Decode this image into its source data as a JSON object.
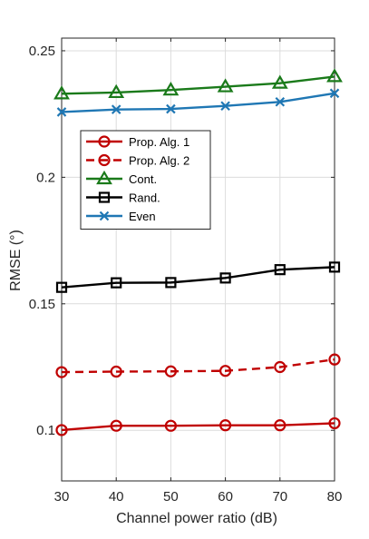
{
  "chart_data": {
    "type": "line",
    "xlabel": "Channel power ratio (dB)",
    "ylabel": "RMSE (°)",
    "xlim": [
      30,
      80
    ],
    "ylim": [
      0.08,
      0.255
    ],
    "xticks": [
      30,
      40,
      50,
      60,
      70,
      80
    ],
    "yticks": [
      0.1,
      0.15,
      0.2,
      0.25
    ],
    "ytick_labels": [
      "0.1",
      "0.15",
      "0.2",
      "0.25"
    ],
    "grid": true,
    "legend_position": "upper-left",
    "x": [
      30,
      40,
      50,
      60,
      70,
      80
    ],
    "series": [
      {
        "name": "Prop. Alg. 1",
        "values": [
          0.1001,
          0.1018,
          0.1018,
          0.102,
          0.102,
          0.1028
        ],
        "color": "#c00000",
        "dash": "solid",
        "marker": "circle"
      },
      {
        "name": "Prop. Alg. 2",
        "values": [
          0.123,
          0.1232,
          0.1233,
          0.1235,
          0.125,
          0.128
        ],
        "color": "#c00000",
        "dash": "dashed",
        "marker": "circle"
      },
      {
        "name": "Cont.",
        "values": [
          0.233,
          0.2335,
          0.2345,
          0.2358,
          0.2372,
          0.2398
        ],
        "color": "#1a7a1a",
        "dash": "solid",
        "marker": "triangle"
      },
      {
        "name": "Rand.",
        "values": [
          0.1565,
          0.1583,
          0.1584,
          0.1602,
          0.1635,
          0.1645
        ],
        "color": "#000000",
        "dash": "solid",
        "marker": "square"
      },
      {
        "name": "Even",
        "values": [
          0.2258,
          0.2268,
          0.227,
          0.2282,
          0.2298,
          0.2332
        ],
        "color": "#1f77b4",
        "dash": "solid",
        "marker": "x"
      }
    ]
  }
}
